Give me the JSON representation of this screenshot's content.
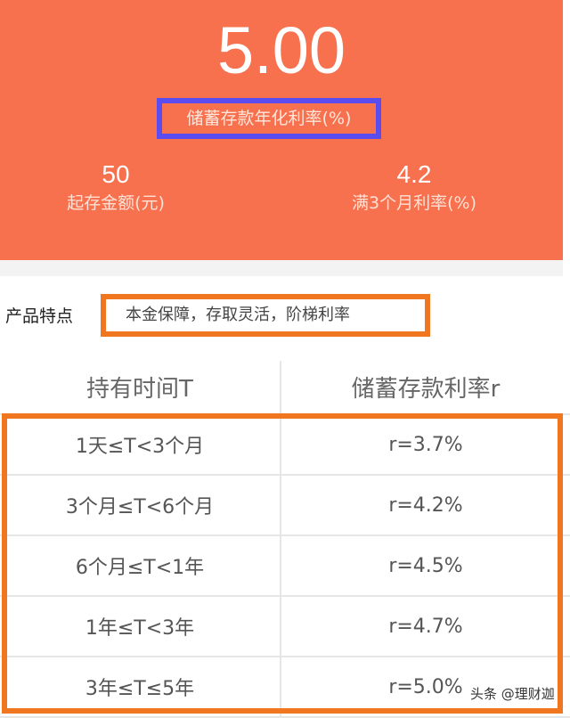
{
  "hero": {
    "rate": "5.00",
    "rate_label": "储蓄存款年化利率(%)",
    "min_amount": "50",
    "min_amount_label": "起存金额(元)",
    "three_month_rate": "4.2",
    "three_month_rate_label": "满3个月利率(%)"
  },
  "features": {
    "label": "产品特点",
    "value": "本金保障，存取灵活，阶梯利率"
  },
  "table": {
    "headers": [
      "持有时间T",
      "储蓄存款利率r"
    ],
    "rows": [
      [
        "1天≤T<3个月",
        "r=3.7%"
      ],
      [
        "3个月≤T<6个月",
        "r=4.2%"
      ],
      [
        "6个月≤T<1年",
        "r=4.5%"
      ],
      [
        "1年≤T<3年",
        "r=4.7%"
      ],
      [
        "3年≤T≤5年",
        "r=5.0%"
      ]
    ]
  },
  "watermark": "头条 @理财迦",
  "colors": {
    "hero": "#F7714E",
    "highlight_blue": "#5B4CF0",
    "highlight_orange": "#F0761F"
  }
}
